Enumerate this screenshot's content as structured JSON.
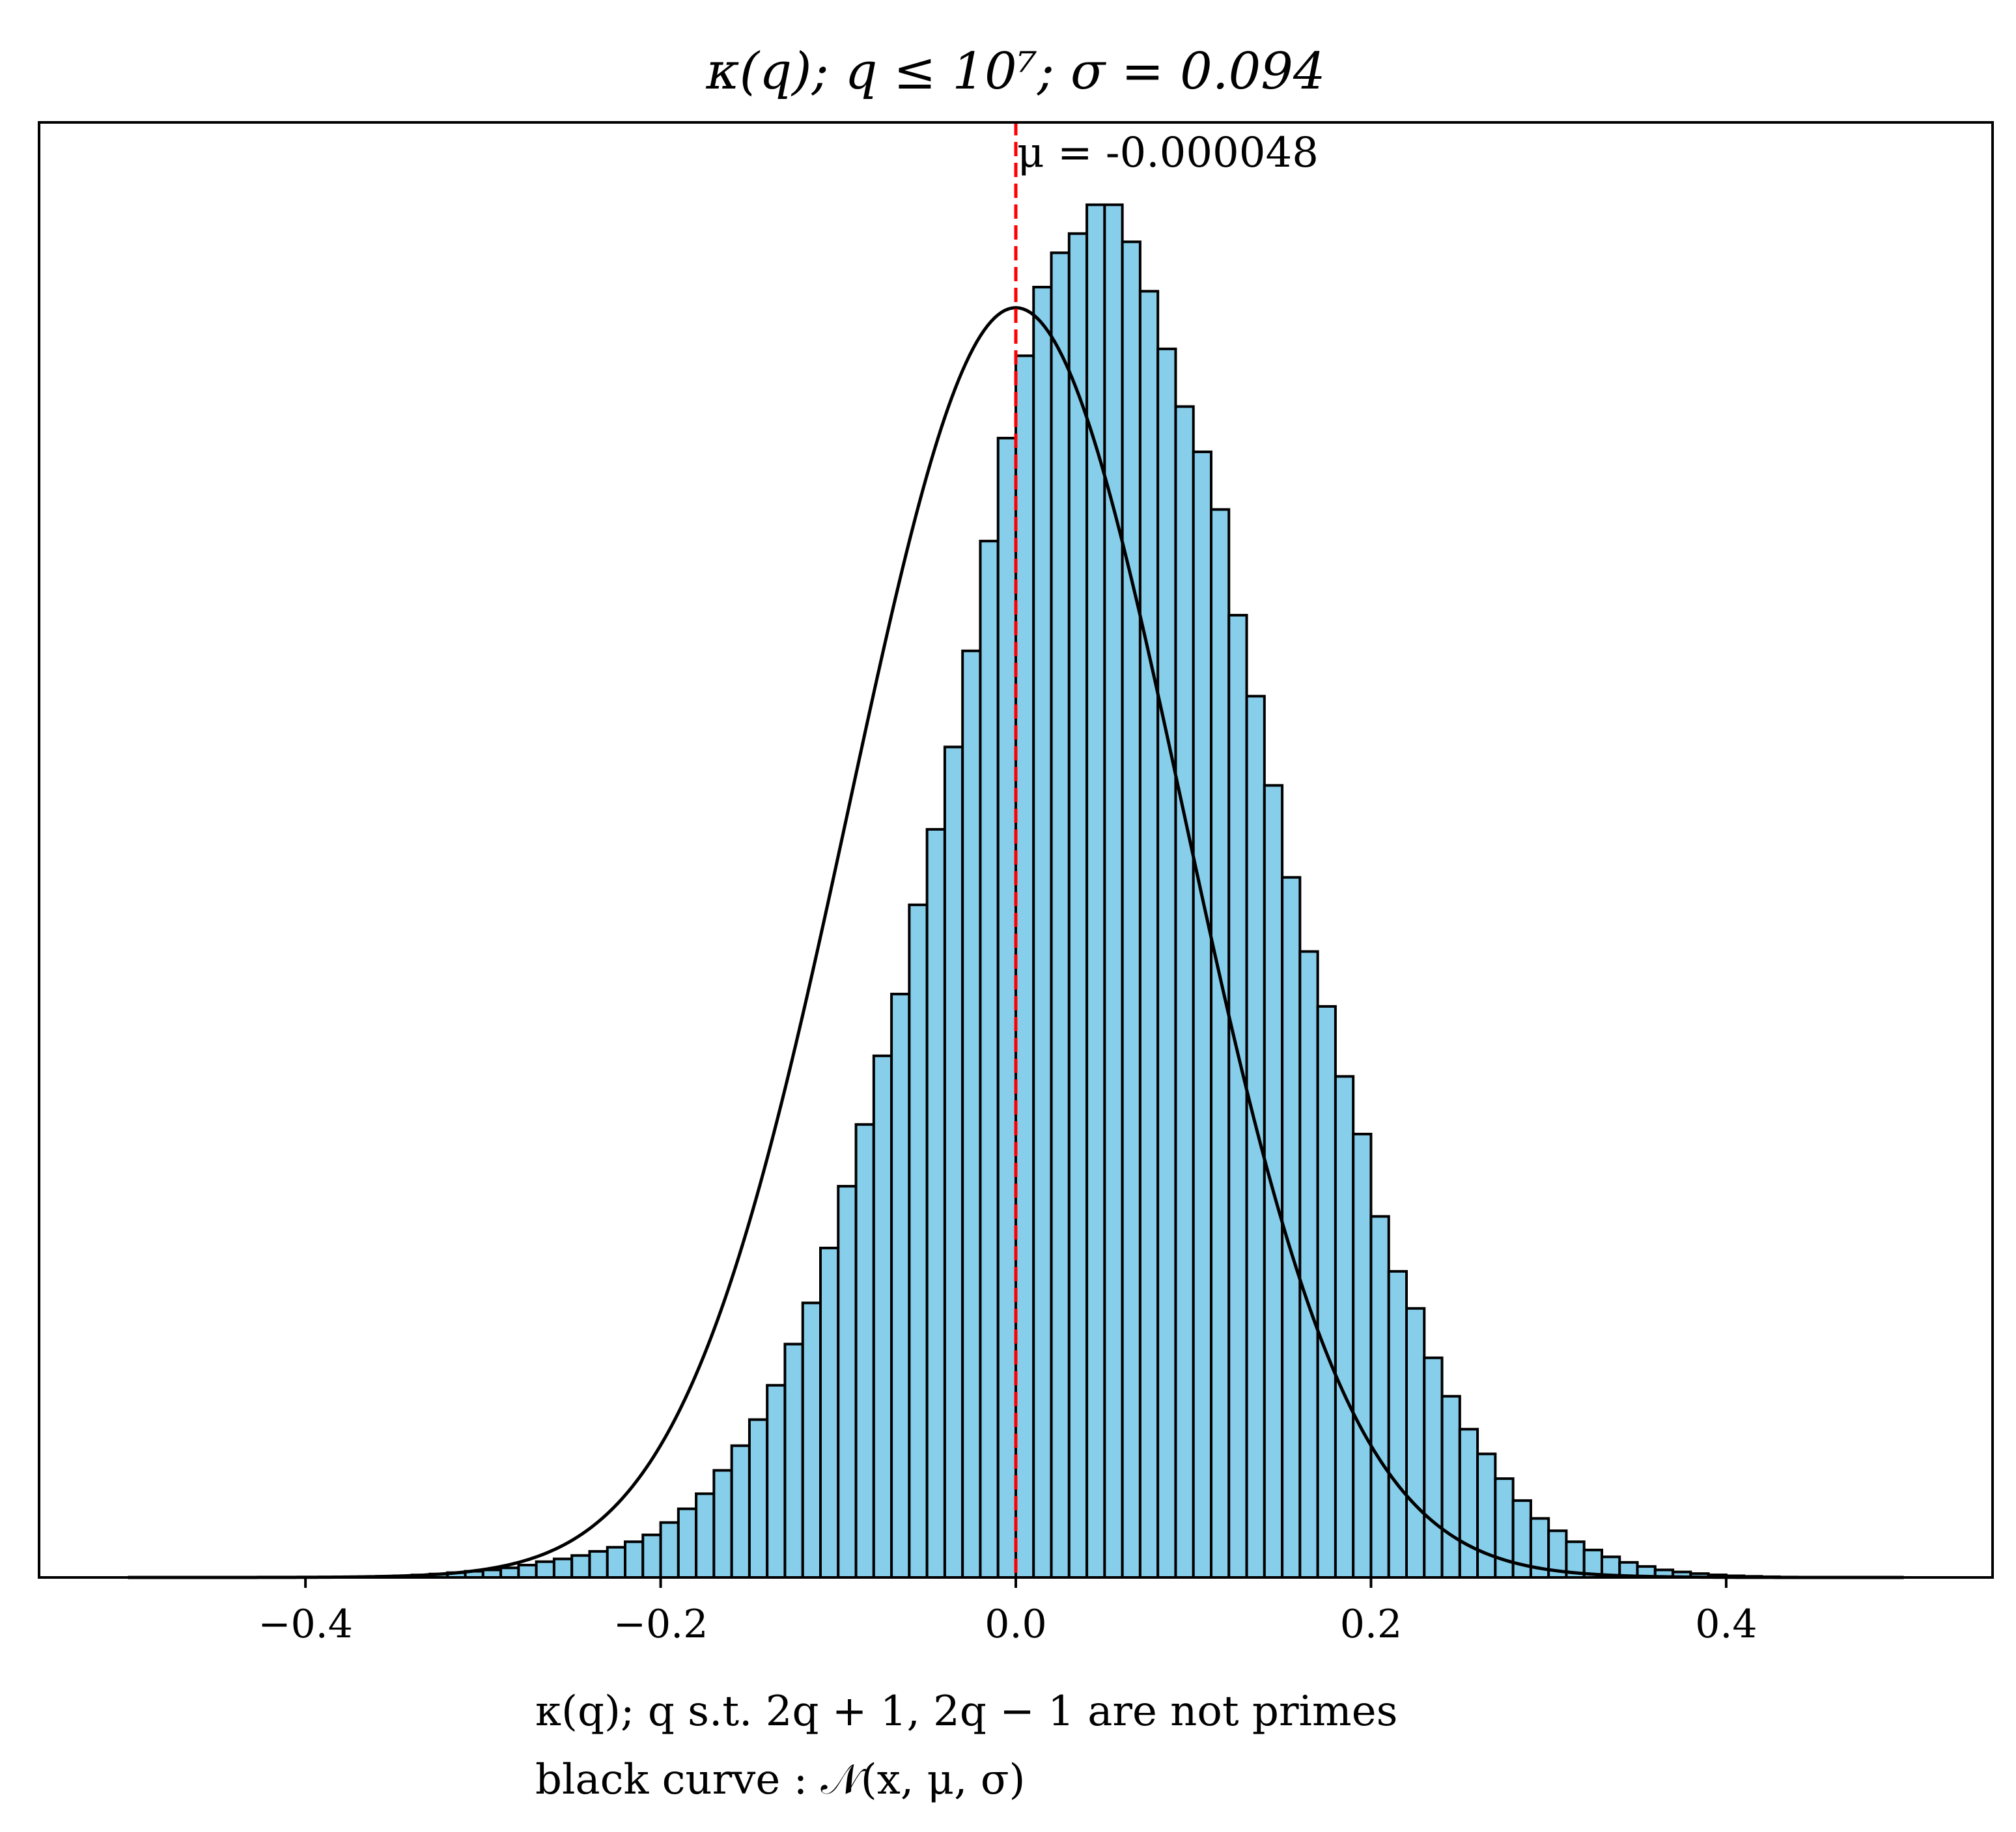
{
  "chart_data": {
    "type": "bar",
    "title": "κ(q); q ≤ 10⁷; σ = 0.094",
    "xlabel_lines": [
      "κ(q); q s.t. 2q + 1, 2q − 1 are not primes",
      "black curve : 𝒩(x, μ, σ)"
    ],
    "ylabel": "",
    "xlim": [
      -0.55,
      0.55
    ],
    "ylim": [
      0,
      1.06
    ],
    "x_ticks": [
      -0.4,
      -0.2,
      0.0,
      0.2,
      0.4
    ],
    "x_tick_labels": [
      "−0.4",
      "−0.2",
      "0.0",
      "0.2",
      "0.4"
    ],
    "y_ticks_visible": false,
    "grid": false,
    "bin_range": [
      -0.5,
      0.5
    ],
    "bin_width": 0.01,
    "bar_color": "#87CEEB",
    "edge_color": "#000000",
    "values": [
      0.0,
      0.0,
      0.0,
      0.0,
      0.0,
      0.0,
      0.0,
      0.0,
      0.0,
      0.0,
      0.0001,
      0.0002,
      0.0003,
      0.0005,
      0.0008,
      0.0012,
      0.0018,
      0.0025,
      0.0035,
      0.0045,
      0.0055,
      0.007,
      0.009,
      0.0115,
      0.0135,
      0.016,
      0.019,
      0.022,
      0.026,
      0.031,
      0.04,
      0.05,
      0.061,
      0.078,
      0.096,
      0.115,
      0.14,
      0.17,
      0.2,
      0.24,
      0.285,
      0.33,
      0.38,
      0.425,
      0.49,
      0.545,
      0.605,
      0.675,
      0.755,
      0.83,
      0.89,
      0.94,
      0.965,
      0.979,
      1.0,
      1.0,
      0.973,
      0.937,
      0.895,
      0.853,
      0.82,
      0.778,
      0.701,
      0.642,
      0.577,
      0.51,
      0.456,
      0.416,
      0.365,
      0.323,
      0.263,
      0.223,
      0.196,
      0.16,
      0.132,
      0.108,
      0.09,
      0.072,
      0.056,
      0.043,
      0.034,
      0.026,
      0.02,
      0.015,
      0.011,
      0.008,
      0.0055,
      0.004,
      0.0028,
      0.0019,
      0.0012,
      0.0008,
      0.0005,
      0.0003,
      0.0002,
      0.0001,
      0.0,
      0.0,
      0.0,
      0.0
    ],
    "normal_curve": {
      "mu": -4.8e-05,
      "sigma": 0.094,
      "peak": 0.925,
      "color": "#000000",
      "x_range": [
        -0.5,
        0.5
      ]
    },
    "mean_line": {
      "x": 0.0,
      "color": "#FF0000",
      "style": "dashed"
    },
    "annotation": "μ = -0.000048"
  }
}
